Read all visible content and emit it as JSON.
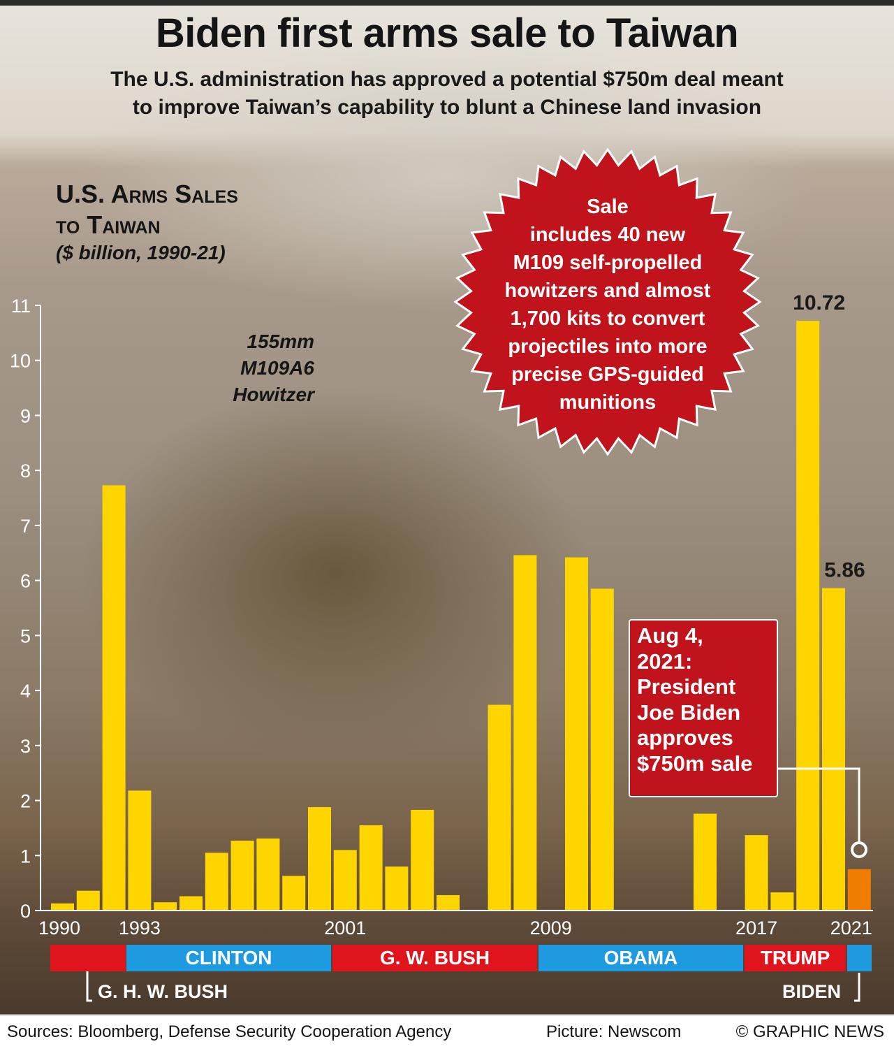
{
  "header": {
    "title": "Biden first arms sale to Taiwan",
    "subtitle_line1": "The U.S. administration has approved a potential $750m deal meant",
    "subtitle_line2": "to improve Taiwan’s capability to blunt a Chinese land invasion"
  },
  "chart_title_line1": "U.S. Arms Sales",
  "chart_title_line2": "to Taiwan",
  "chart_unit": "($ billion, 1990-21)",
  "image_caption": [
    "155mm",
    "M109A6",
    "Howitzer"
  ],
  "badge_lines": [
    "Sale",
    "includes 40 new",
    "M109 self-propelled",
    "howitzers and almost",
    "1,700 kits to convert",
    "projectiles into more",
    "precise GPS-guided",
    "munitions"
  ],
  "callout_lines": [
    "Aug 4,",
    "2021:",
    "President",
    "Joe Biden",
    "approves",
    "$750m sale"
  ],
  "colors": {
    "bar": "#ffd500",
    "highlight_bar": "#f07d00",
    "republican": "#e0141d",
    "democrat": "#1e9be0",
    "badge": "#c0131b"
  },
  "chart_data": {
    "type": "bar",
    "title": "U.S. Arms Sales to Taiwan",
    "ylabel": "$ billion",
    "ylim": [
      0,
      11
    ],
    "y_ticks": [
      0,
      1,
      2,
      3,
      4,
      5,
      6,
      7,
      8,
      9,
      10,
      11
    ],
    "x_tick_labels": [
      "1990",
      "1993",
      "2001",
      "2009",
      "2017",
      "2021"
    ],
    "x": [
      1990,
      1991,
      1992,
      1993,
      1994,
      1995,
      1996,
      1997,
      1998,
      1999,
      2000,
      2001,
      2002,
      2003,
      2004,
      2005,
      2006,
      2007,
      2008,
      2009,
      2010,
      2011,
      2012,
      2013,
      2014,
      2015,
      2016,
      2017,
      2018,
      2019,
      2020,
      2021
    ],
    "values": [
      0.13,
      0.36,
      7.73,
      2.18,
      0.15,
      0.26,
      1.05,
      1.27,
      1.31,
      0.63,
      1.88,
      1.1,
      1.55,
      0.8,
      1.83,
      0.28,
      0,
      3.74,
      6.46,
      0,
      6.42,
      5.85,
      0,
      0,
      0,
      1.76,
      0,
      1.37,
      0.33,
      10.72,
      5.86,
      0.75
    ],
    "highlighted": [
      2021
    ],
    "data_labels": [
      {
        "x": 2019,
        "text": "10.72"
      },
      {
        "x": 2020,
        "text": "5.86"
      }
    ],
    "grid": false
  },
  "presidents": [
    {
      "name": "",
      "party": "republican"
    },
    {
      "name": "CLINTON",
      "party": "democrat"
    },
    {
      "name": "G. W. BUSH",
      "party": "republican"
    },
    {
      "name": "OBAMA",
      "party": "democrat"
    },
    {
      "name": "TRUMP",
      "party": "republican"
    },
    {
      "name": "",
      "party": "democrat"
    }
  ],
  "president_labels_below": {
    "first": "G. H. W. BUSH",
    "last": "BIDEN"
  },
  "footer": {
    "sources": "Sources: Bloomberg, Defense Security Cooperation Agency",
    "picture": "Picture: Newscom",
    "credit": "© GRAPHIC NEWS"
  }
}
